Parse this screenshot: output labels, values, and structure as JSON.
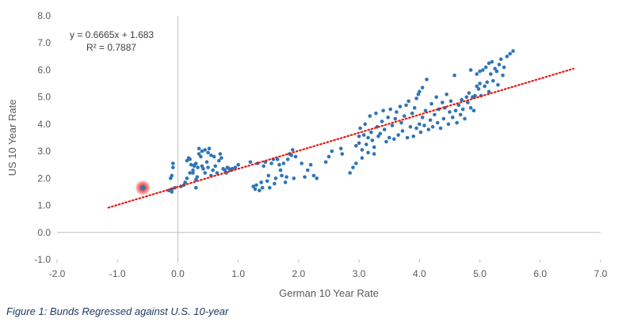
{
  "caption": "Figure 1: Bunds Regressed against U.S. 10-year",
  "chart_data": {
    "type": "scatter",
    "xlabel": "German 10 Year Rate",
    "ylabel": "US 10 Year Rate",
    "xlim": [
      -2.0,
      7.0
    ],
    "ylim": [
      -1.0,
      8.0
    ],
    "x_ticks": [
      "-2.0",
      "-1.0",
      "0.0",
      "1.0",
      "2.0",
      "3.0",
      "4.0",
      "5.0",
      "6.0",
      "7.0"
    ],
    "y_ticks": [
      "-1.0",
      "0.0",
      "1.0",
      "2.0",
      "3.0",
      "4.0",
      "5.0",
      "6.0",
      "7.0",
      "8.0"
    ],
    "annotation": {
      "equation": "y = 0.6665x + 1.683",
      "r2": "R² = 0.7887"
    },
    "trendline": {
      "slope": 0.6665,
      "intercept": 1.683,
      "x_range": [
        -1.15,
        6.55
      ],
      "color": "#e8170f",
      "style": "dotted"
    },
    "highlight_point": {
      "x": -0.58,
      "y": 1.65,
      "color": "#e8170f"
    },
    "colors": {
      "points": "#2e75b6",
      "axis": "#bfbfbf",
      "highlight": "#e8170f"
    },
    "series": [
      {
        "points": [
          [
            -0.15,
            1.55
          ],
          [
            -0.1,
            1.5
          ],
          [
            -0.1,
            1.6
          ],
          [
            -0.12,
            2.0
          ],
          [
            -0.1,
            2.1
          ],
          [
            -0.08,
            2.4
          ],
          [
            -0.08,
            2.55
          ],
          [
            -0.05,
            1.65
          ],
          [
            0.05,
            1.7
          ],
          [
            0.1,
            1.75
          ],
          [
            0.12,
            1.85
          ],
          [
            0.15,
            2.65
          ],
          [
            0.18,
            2.75
          ],
          [
            0.2,
            2.7
          ],
          [
            0.22,
            2.5
          ],
          [
            0.25,
            2.2
          ],
          [
            0.25,
            2.3
          ],
          [
            0.28,
            2.5
          ],
          [
            0.3,
            2.55
          ],
          [
            0.3,
            1.95
          ],
          [
            0.32,
            2.05
          ],
          [
            0.33,
            2.4
          ],
          [
            0.35,
            2.9
          ],
          [
            0.35,
            3.1
          ],
          [
            0.38,
            2.8
          ],
          [
            0.4,
            3.0
          ],
          [
            0.4,
            2.45
          ],
          [
            0.42,
            2.35
          ],
          [
            0.45,
            2.2
          ],
          [
            0.45,
            3.05
          ],
          [
            0.48,
            2.6
          ],
          [
            0.5,
            2.4
          ],
          [
            0.5,
            2.95
          ],
          [
            0.52,
            3.1
          ],
          [
            0.55,
            2.85
          ],
          [
            0.55,
            2.1
          ],
          [
            0.58,
            2.3
          ],
          [
            0.6,
            2.8
          ],
          [
            0.62,
            2.45
          ],
          [
            0.65,
            2.2
          ],
          [
            0.68,
            2.65
          ],
          [
            0.7,
            2.9
          ],
          [
            0.72,
            2.75
          ],
          [
            0.75,
            2.35
          ],
          [
            0.78,
            2.3
          ],
          [
            0.8,
            2.2
          ],
          [
            0.82,
            2.4
          ],
          [
            0.85,
            2.35
          ],
          [
            0.88,
            2.3
          ],
          [
            0.9,
            2.35
          ],
          [
            0.95,
            2.4
          ],
          [
            1.0,
            2.5
          ],
          [
            0.3,
            1.65
          ],
          [
            0.15,
            2.0
          ],
          [
            0.2,
            2.2
          ],
          [
            0.27,
            2.45
          ],
          [
            1.2,
            2.6
          ],
          [
            1.25,
            1.7
          ],
          [
            1.28,
            1.6
          ],
          [
            1.3,
            1.75
          ],
          [
            1.32,
            2.55
          ],
          [
            1.35,
            1.55
          ],
          [
            1.38,
            1.85
          ],
          [
            1.4,
            1.65
          ],
          [
            1.42,
            2.45
          ],
          [
            1.45,
            2.6
          ],
          [
            1.48,
            1.9
          ],
          [
            1.5,
            2.1
          ],
          [
            1.52,
            1.65
          ],
          [
            1.55,
            2.55
          ],
          [
            1.58,
            2.7
          ],
          [
            1.6,
            1.8
          ],
          [
            1.62,
            2.0
          ],
          [
            1.65,
            2.7
          ],
          [
            1.68,
            2.5
          ],
          [
            1.7,
            2.3
          ],
          [
            1.72,
            2.1
          ],
          [
            1.75,
            2.55
          ],
          [
            1.78,
            1.85
          ],
          [
            1.8,
            2.05
          ],
          [
            1.82,
            2.7
          ],
          [
            1.85,
            2.9
          ],
          [
            1.88,
            2.85
          ],
          [
            1.9,
            3.05
          ],
          [
            1.92,
            2.0
          ],
          [
            1.95,
            2.8
          ],
          [
            2.05,
            2.55
          ],
          [
            2.1,
            2.05
          ],
          [
            2.15,
            2.3
          ],
          [
            2.2,
            2.5
          ],
          [
            2.25,
            2.1
          ],
          [
            2.3,
            2.0
          ],
          [
            2.45,
            2.6
          ],
          [
            2.5,
            2.8
          ],
          [
            2.55,
            3.0
          ],
          [
            2.7,
            3.1
          ],
          [
            2.72,
            2.9
          ],
          [
            2.85,
            2.2
          ],
          [
            2.9,
            2.4
          ],
          [
            2.95,
            2.55
          ],
          [
            2.95,
            3.2
          ],
          [
            3.0,
            3.3
          ],
          [
            3.0,
            3.55
          ],
          [
            3.02,
            3.85
          ],
          [
            3.05,
            3.05
          ],
          [
            3.08,
            3.6
          ],
          [
            3.1,
            4.0
          ],
          [
            3.12,
            3.25
          ],
          [
            3.15,
            3.5
          ],
          [
            3.18,
            4.3
          ],
          [
            3.2,
            3.7
          ],
          [
            3.22,
            3.4
          ],
          [
            3.25,
            3.15
          ],
          [
            3.28,
            4.4
          ],
          [
            3.3,
            3.9
          ],
          [
            3.32,
            3.55
          ],
          [
            3.35,
            3.65
          ],
          [
            3.38,
            4.1
          ],
          [
            3.4,
            4.5
          ],
          [
            3.42,
            3.8
          ],
          [
            3.45,
            3.35
          ],
          [
            3.48,
            4.25
          ],
          [
            3.5,
            3.5
          ],
          [
            3.52,
            4.55
          ],
          [
            3.55,
            3.95
          ],
          [
            3.58,
            3.45
          ],
          [
            3.6,
            4.2
          ],
          [
            3.62,
            4.45
          ],
          [
            3.65,
            3.6
          ],
          [
            3.68,
            4.65
          ],
          [
            3.7,
            4.05
          ],
          [
            3.72,
            3.75
          ],
          [
            3.75,
            4.3
          ],
          [
            3.78,
            4.7
          ],
          [
            3.8,
            3.5
          ],
          [
            3.82,
            4.85
          ],
          [
            3.85,
            3.9
          ],
          [
            3.88,
            4.4
          ],
          [
            3.9,
            3.55
          ],
          [
            3.92,
            4.6
          ],
          [
            3.95,
            4.95
          ],
          [
            3.95,
            3.85
          ],
          [
            3.98,
            5.1
          ],
          [
            4.0,
            4.0
          ],
          [
            4.0,
            5.2
          ],
          [
            4.02,
            3.7
          ],
          [
            4.05,
            4.25
          ],
          [
            4.05,
            5.35
          ],
          [
            4.08,
            3.95
          ],
          [
            4.1,
            4.5
          ],
          [
            4.12,
            5.65
          ],
          [
            4.15,
            3.8
          ],
          [
            4.18,
            4.15
          ],
          [
            4.2,
            4.75
          ],
          [
            4.22,
            3.9
          ],
          [
            4.25,
            4.35
          ],
          [
            4.28,
            5.0
          ],
          [
            4.3,
            4.05
          ],
          [
            4.32,
            4.55
          ],
          [
            4.35,
            3.85
          ],
          [
            4.38,
            4.8
          ],
          [
            4.4,
            4.2
          ],
          [
            4.42,
            4.6
          ],
          [
            4.45,
            5.1
          ],
          [
            4.48,
            4.0
          ],
          [
            4.5,
            4.45
          ],
          [
            4.52,
            4.85
          ],
          [
            4.55,
            4.25
          ],
          [
            4.58,
            5.8
          ],
          [
            4.6,
            4.5
          ],
          [
            4.62,
            4.05
          ],
          [
            4.65,
            4.7
          ],
          [
            4.68,
            4.35
          ],
          [
            4.7,
            4.9
          ],
          [
            4.72,
            4.55
          ],
          [
            4.75,
            4.2
          ],
          [
            4.78,
            5.0
          ],
          [
            4.8,
            4.8
          ],
          [
            4.82,
            5.15
          ],
          [
            4.85,
            4.6
          ],
          [
            4.88,
            5.0
          ],
          [
            4.9,
            4.5
          ],
          [
            4.92,
            5.05
          ],
          [
            4.95,
            5.4
          ],
          [
            4.98,
            5.3
          ],
          [
            5.0,
            5.5
          ],
          [
            5.0,
            5.95
          ],
          [
            5.02,
            5.05
          ],
          [
            5.05,
            6.0
          ],
          [
            5.08,
            5.4
          ],
          [
            5.1,
            6.1
          ],
          [
            5.12,
            5.55
          ],
          [
            5.15,
            5.2
          ],
          [
            5.15,
            6.25
          ],
          [
            5.18,
            5.85
          ],
          [
            5.2,
            6.3
          ],
          [
            5.22,
            5.6
          ],
          [
            5.25,
            6.05
          ],
          [
            5.28,
            5.95
          ],
          [
            5.3,
            5.45
          ],
          [
            5.32,
            6.2
          ],
          [
            5.35,
            6.4
          ],
          [
            5.38,
            5.8
          ],
          [
            5.4,
            6.1
          ],
          [
            5.45,
            6.5
          ],
          [
            5.5,
            6.6
          ],
          [
            5.55,
            6.7
          ],
          [
            4.85,
            6.0
          ],
          [
            4.95,
            5.85
          ],
          [
            3.05,
            2.75
          ],
          [
            3.15,
            2.95
          ],
          [
            3.25,
            2.9
          ]
        ]
      }
    ]
  }
}
